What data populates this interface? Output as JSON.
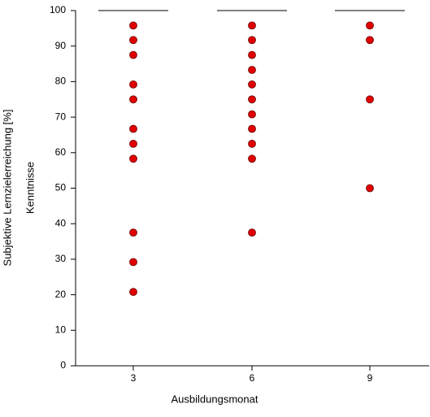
{
  "chart_data": {
    "type": "box",
    "x_label": "Ausbildungsmonat",
    "y_label": "Subjektive Lernzielerreichung [%]",
    "y_label_2": "Kenntnisse",
    "categories": [
      "3",
      "6",
      "9"
    ],
    "boxes": [
      {
        "q1": 100,
        "median": 100,
        "q3": 100,
        "outliers": [
          95.8,
          91.7,
          87.5,
          79.2,
          75,
          66.7,
          62.5,
          58.3,
          37.5,
          29.2,
          20.8
        ]
      },
      {
        "q1": 100,
        "median": 100,
        "q3": 100,
        "outliers": [
          95.8,
          91.7,
          87.5,
          83.3,
          79.2,
          75,
          70.8,
          66.7,
          62.5,
          58.3,
          37.5
        ]
      },
      {
        "q1": 100,
        "median": 100,
        "q3": 100,
        "outliers": [
          95.8,
          91.7,
          75,
          50
        ]
      }
    ],
    "color": "#e00000",
    "ylim": [
      0,
      100
    ],
    "yticks": [
      0,
      10,
      20,
      30,
      40,
      50,
      60,
      70,
      80,
      90,
      100
    ]
  }
}
